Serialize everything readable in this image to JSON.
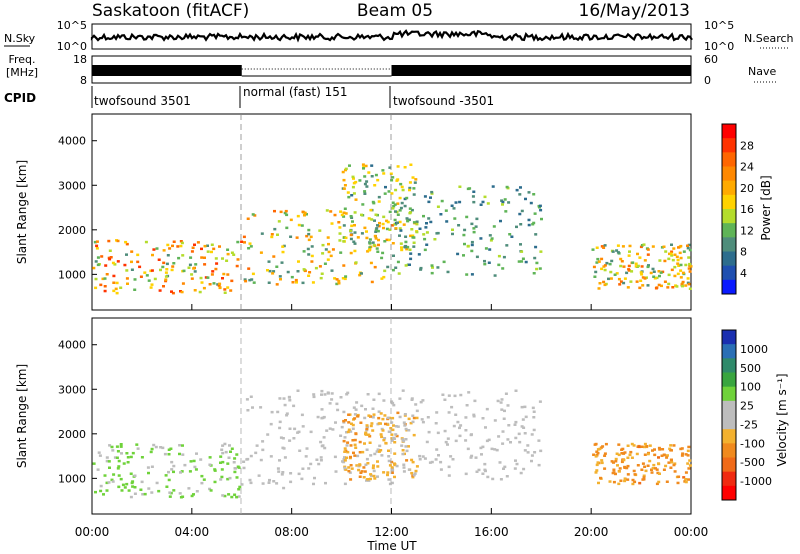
{
  "header": {
    "station": "Saskatoon (fitACF)",
    "beam": "Beam 05",
    "date": "16/May/2013"
  },
  "noise_panel": {
    "left_label": "N.Sky",
    "right_label": "N.Search",
    "left_ticks": [
      "10^5",
      "10^0"
    ],
    "right_ticks": [
      "10^5",
      "10^0"
    ]
  },
  "freq_panel": {
    "left_label_1": "Freq.",
    "left_label_2": "[MHz]",
    "right_label": "Nave",
    "left_ticks": [
      "18",
      "8"
    ],
    "right_ticks": [
      "60",
      "0"
    ]
  },
  "cpid": {
    "label": "CPID",
    "segments": [
      {
        "name": "twofsound 3501",
        "start_hour": 0,
        "end_hour": 6
      },
      {
        "name": "normal (fast) 151",
        "start_hour": 6,
        "end_hour": 12
      },
      {
        "name": "twofsound -3501",
        "start_hour": 12,
        "end_hour": 24
      }
    ]
  },
  "power_panel": {
    "ylabel": "Slant Range [km]",
    "yticks": [
      "4000",
      "3000",
      "2000",
      "1000"
    ],
    "colorbar_label": "Power [dB]",
    "colorbar_ticks": [
      "28",
      "24",
      "20",
      "16",
      "12",
      "8",
      "4"
    ],
    "colorbar_colors": [
      "#ff0000",
      "#ff3300",
      "#ff6600",
      "#ff8800",
      "#ffaa00",
      "#ffd200",
      "#b4dc2c",
      "#5fb457",
      "#4f8d7b",
      "#2d6d8d",
      "#1f4fb0",
      "#0a1aff"
    ]
  },
  "velocity_panel": {
    "ylabel": "Slant Range [km]",
    "yticks": [
      "4000",
      "3000",
      "2000",
      "1000"
    ],
    "colorbar_label": "Velocity [m s⁻¹]",
    "colorbar_ticks": [
      "1000",
      "500",
      "100",
      "25",
      "-25",
      "-100",
      "-500",
      "-1000"
    ],
    "colorbar_colors": [
      "#1a2fb0",
      "#2a6fb5",
      "#2f8a6a",
      "#39a53f",
      "#6fd23a",
      "#bdbdbd",
      "#bdbdbd",
      "#f3b12f",
      "#f08a1e",
      "#f06a18",
      "#f02a10",
      "#ff0000"
    ]
  },
  "xaxis": {
    "label": "Time UT",
    "ticks": [
      "00:00",
      "04:00",
      "08:00",
      "12:00",
      "16:00",
      "20:00",
      "00:00"
    ]
  },
  "chart_data": {
    "type": "heatmap",
    "title": "Saskatoon (fitACF)   Beam 05   16/May/2013",
    "xlabel": "Time UT",
    "ylabel": "Slant Range [km]",
    "xlim": [
      0,
      24
    ],
    "ylim": [
      200,
      4600
    ],
    "grid": false,
    "panels": [
      {
        "name": "Power",
        "unit": "dB",
        "range": [
          0,
          30
        ],
        "echo_bands": [
          {
            "t": [
              0,
              6
            ],
            "range_km": [
              600,
              1800
            ],
            "peak": 28
          },
          {
            "t": [
              6,
              12
            ],
            "range_km": [
              800,
              2500
            ],
            "peak": 24
          },
          {
            "t": [
              10,
              13
            ],
            "range_km": [
              1500,
              3500
            ],
            "peak": 20
          },
          {
            "t": [
              12,
              18
            ],
            "range_km": [
              1000,
              3000
            ],
            "peak": 14
          },
          {
            "t": [
              20,
              24
            ],
            "range_km": [
              700,
              1700
            ],
            "peak": 24
          }
        ]
      },
      {
        "name": "Velocity",
        "unit": "m s-1",
        "range": [
          -1000,
          1000
        ],
        "echo_bands": [
          {
            "t": [
              0,
              6
            ],
            "range_km": [
              600,
              1800
            ],
            "dominant": 200
          },
          {
            "t": [
              6,
              12
            ],
            "range_km": [
              800,
              3000
            ],
            "dominant": 0
          },
          {
            "t": [
              10,
              13
            ],
            "range_km": [
              1000,
              2500
            ],
            "dominant": -300
          },
          {
            "t": [
              12,
              18
            ],
            "range_km": [
              1000,
              3000
            ],
            "dominant": 0
          },
          {
            "t": [
              20,
              24
            ],
            "range_km": [
              900,
              1800
            ],
            "dominant": -400
          }
        ]
      }
    ]
  }
}
